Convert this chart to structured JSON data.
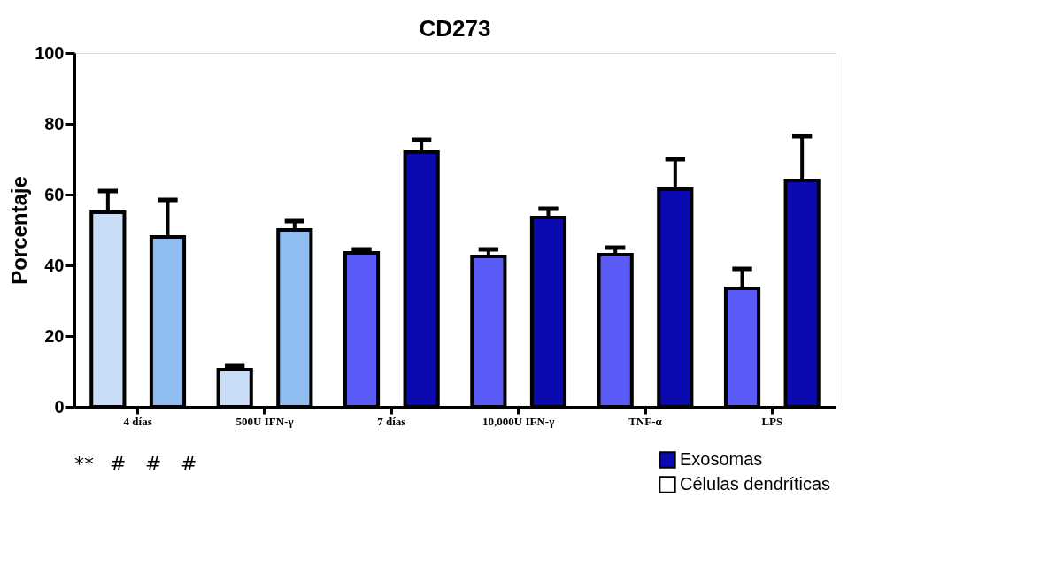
{
  "chart_data": {
    "type": "bar",
    "title": "CD273",
    "ylabel": "Porcentaje",
    "categories": [
      "4 días",
      "500U IFN-γ",
      "7 días",
      "10,000U IFN-γ",
      "TNF-α",
      "LPS"
    ],
    "series": [
      {
        "name": "Células dendríticas",
        "color": "#ffffff",
        "colors": [
          "#c9ddf6",
          "#c9ddf6",
          "#5b5bf8",
          "#5b5bf8",
          "#5b5bf8",
          "#5b5bf8"
        ],
        "values": [
          55,
          10.5,
          43.5,
          42.5,
          43,
          33.5
        ],
        "errors": [
          [
            55,
            61
          ],
          [
            10.5,
            11.5
          ],
          [
            43.5,
            44.5
          ],
          [
            42.5,
            44.5
          ],
          [
            43,
            45
          ],
          [
            33.5,
            39
          ]
        ]
      },
      {
        "name": "Exosomas",
        "color": "#0a0ab0",
        "colors": [
          "#8fbdf0",
          "#8fbdf0",
          "#0a0ab0",
          "#0a0ab0",
          "#0a0ab0",
          "#0a0ab0"
        ],
        "values": [
          48,
          50,
          72,
          53.5,
          61.5,
          64
        ],
        "errors": [
          [
            48,
            58.5
          ],
          [
            50,
            52.5
          ],
          [
            72,
            75.5
          ],
          [
            53.5,
            56
          ],
          [
            61.5,
            70
          ],
          [
            64,
            76.5
          ]
        ]
      }
    ],
    "ylim": [
      0,
      100
    ],
    "yticks": [
      0,
      20,
      40,
      60,
      80,
      100
    ],
    "grid": false,
    "legend": "bottom right",
    "annotations": [
      "**",
      "#",
      "#",
      "#"
    ]
  }
}
